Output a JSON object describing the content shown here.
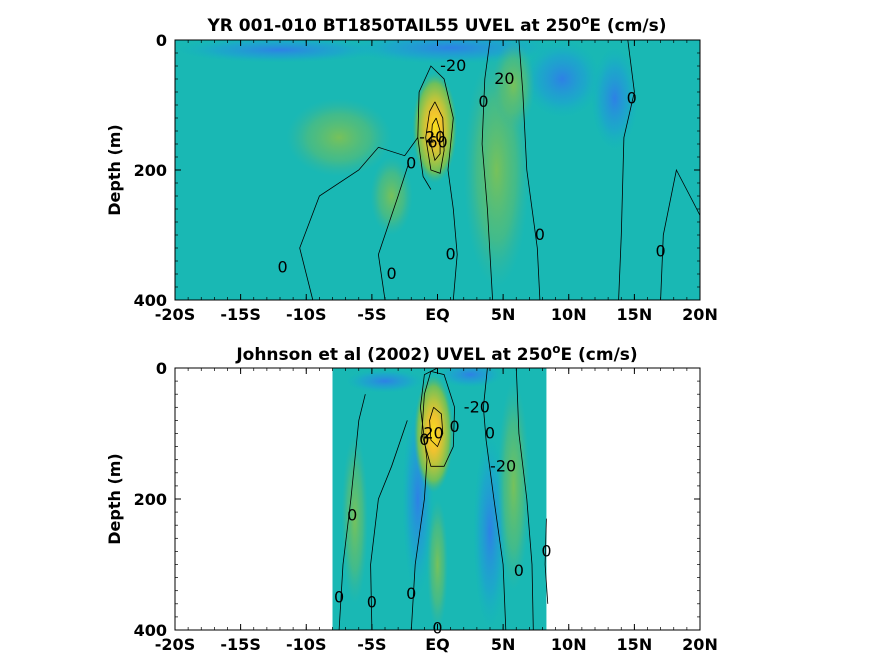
{
  "chart_data": [
    {
      "type": "heatmap",
      "title_main": "YR 001-010 BT1850TAIL55 UVEL at 250",
      "title_sup": "o",
      "title_tail": "E (cm/s)",
      "xlabel": "",
      "ylabel": "Depth (m)",
      "x_ticks": [
        "-20S",
        "-15S",
        "-10S",
        "-5S",
        "EQ",
        "5N",
        "10N",
        "15N",
        "20N"
      ],
      "y_ticks": [
        "0",
        "200",
        "400"
      ],
      "xlim": [
        -20,
        20
      ],
      "ylim": [
        0,
        400
      ],
      "data_xrange": [
        -20,
        20
      ],
      "contour_labels": [
        {
          "text": "-20",
          "x": 1.2,
          "y": 40
        },
        {
          "text": "20",
          "x": 5.1,
          "y": 60
        },
        {
          "text": "0",
          "x": 3.5,
          "y": 95
        },
        {
          "text": "0",
          "x": 14.8,
          "y": 90
        },
        {
          "text": "-20",
          "x": -0.4,
          "y": 150
        },
        {
          "text": "60",
          "x": 0.0,
          "y": 158
        },
        {
          "text": "0",
          "x": -2.0,
          "y": 190
        },
        {
          "text": "0",
          "x": -11.8,
          "y": 350
        },
        {
          "text": "0",
          "x": -3.5,
          "y": 360
        },
        {
          "text": "0",
          "x": 1.0,
          "y": 330
        },
        {
          "text": "0",
          "x": 7.8,
          "y": 300
        },
        {
          "text": "0",
          "x": 17.0,
          "y": 325
        }
      ]
    },
    {
      "type": "heatmap",
      "title_main": "Johnson et al (2002) UVEL at 250",
      "title_sup": "o",
      "title_tail": "E (cm/s)",
      "xlabel": "",
      "ylabel": "Depth (m)",
      "x_ticks": [
        "-20S",
        "-15S",
        "-10S",
        "-5S",
        "EQ",
        "5N",
        "10N",
        "15N",
        "20N"
      ],
      "y_ticks": [
        "0",
        "200",
        "400"
      ],
      "xlim": [
        -20,
        20
      ],
      "ylim": [
        0,
        400
      ],
      "data_xrange": [
        -8,
        8.3
      ],
      "contour_labels": [
        {
          "text": "-20",
          "x": 3.0,
          "y": 60
        },
        {
          "text": "0",
          "x": 1.3,
          "y": 90
        },
        {
          "text": "0",
          "x": 4.0,
          "y": 100
        },
        {
          "text": "0",
          "x": -1.0,
          "y": 110
        },
        {
          "text": "20",
          "x": -0.3,
          "y": 100
        },
        {
          "text": "-20",
          "x": 5.0,
          "y": 150
        },
        {
          "text": "0",
          "x": -6.5,
          "y": 225
        },
        {
          "text": "0",
          "x": 8.3,
          "y": 280
        },
        {
          "text": "0",
          "x": 6.2,
          "y": 310
        },
        {
          "text": "0",
          "x": -7.5,
          "y": 350
        },
        {
          "text": "0",
          "x": -5.0,
          "y": 358
        },
        {
          "text": "0",
          "x": -2.0,
          "y": 345
        },
        {
          "text": "0",
          "x": 0.0,
          "y": 398
        }
      ]
    }
  ]
}
